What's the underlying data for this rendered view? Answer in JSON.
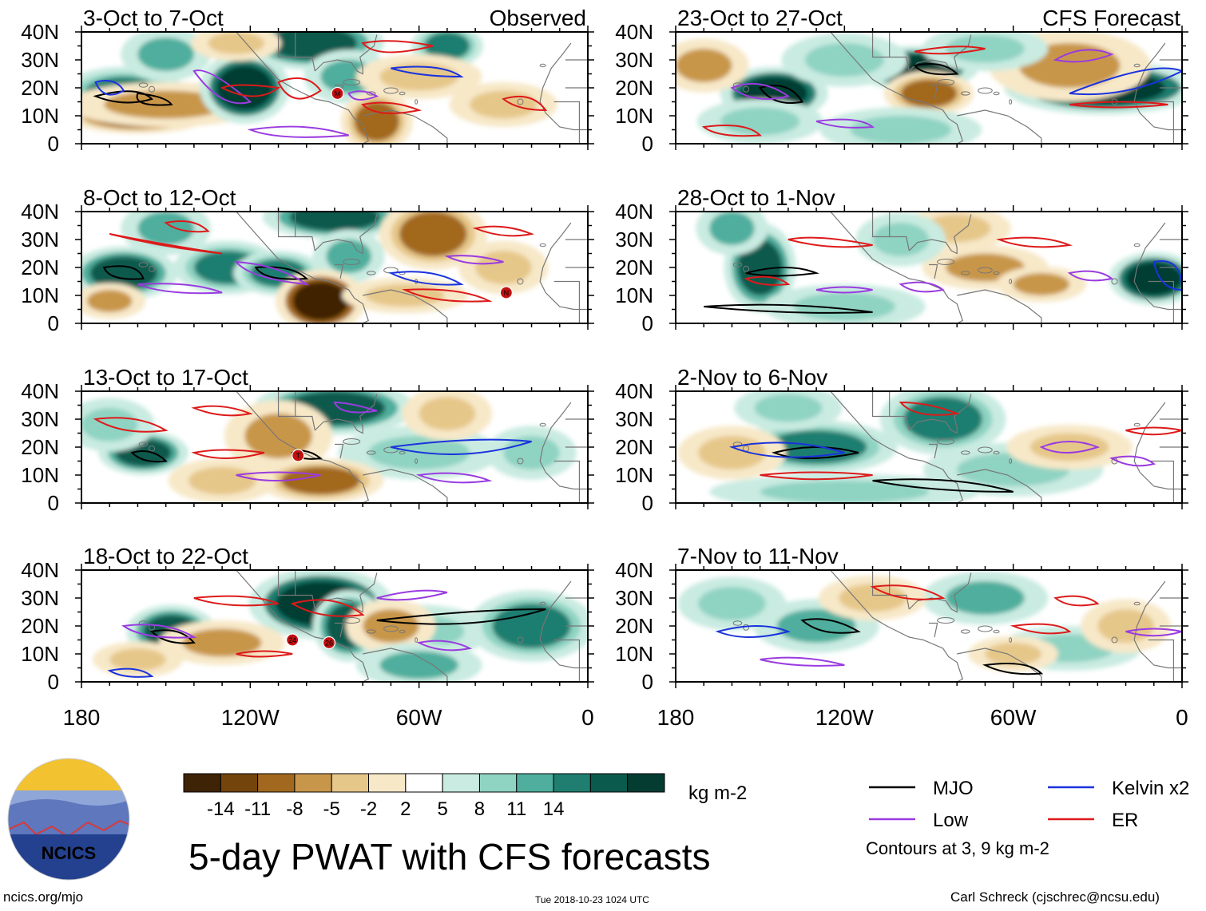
{
  "chart_data": {
    "type": "heatmap",
    "title": "5-day PWAT with CFS forecasts",
    "variable": "PWAT anomaly",
    "units": "kg m-2",
    "columns": [
      {
        "header": "Observed",
        "panels": [
          {
            "period": "3-Oct to 7-Oct"
          },
          {
            "period": "8-Oct to 12-Oct"
          },
          {
            "period": "13-Oct to 17-Oct"
          },
          {
            "period": "18-Oct to 22-Oct"
          }
        ]
      },
      {
        "header": "CFS Forecast",
        "panels": [
          {
            "period": "23-Oct to 27-Oct"
          },
          {
            "period": "28-Oct to 1-Nov"
          },
          {
            "period": "2-Nov to 6-Nov"
          },
          {
            "period": "7-Nov to 11-Nov"
          }
        ]
      }
    ],
    "y_ticks": [
      "40N",
      "30N",
      "20N",
      "10N",
      "0"
    ],
    "x_ticks": [
      "180",
      "120W",
      "60W",
      "0"
    ],
    "lat_range": [
      0,
      40
    ],
    "lon_range": [
      -180,
      0
    ],
    "colorbar": {
      "labels": [
        "-14",
        "-11",
        "-8",
        "-5",
        "-2",
        "2",
        "5",
        "8",
        "11",
        "14"
      ],
      "colors": [
        "#3f2306",
        "#74440d",
        "#a2681f",
        "#c8964a",
        "#e6c78a",
        "#f7e8c8",
        "#ffffff",
        "#c9ebe1",
        "#8fd3c2",
        "#4fae9d",
        "#1f7e70",
        "#0a5a4d",
        "#053c32"
      ]
    },
    "legend": [
      {
        "label": "MJO",
        "color": "#000000"
      },
      {
        "label": "Kelvin x2",
        "color": "#1a33dd"
      },
      {
        "label": "Low",
        "color": "#9a3be0"
      },
      {
        "label": "ER",
        "color": "#dd1a1a"
      }
    ],
    "contour_note": "Contours at 3, 9 kg m-2",
    "storm_markers": [
      {
        "panel": 0,
        "label": "M",
        "lon": -89,
        "lat": 18
      },
      {
        "panel": 1,
        "label": "N",
        "lon": -29,
        "lat": 11
      },
      {
        "panel": 2,
        "label": "T",
        "lon": -103,
        "lat": 17
      },
      {
        "panel": 3,
        "label": "24",
        "lon": -105,
        "lat": 15
      },
      {
        "panel": 3,
        "label": "26",
        "lon": -92,
        "lat": 14
      }
    ]
  },
  "footer": {
    "logo_text": "NCICS",
    "url": "ncics.org/mjo",
    "timestamp": "Tue 2018-10-23 1024 UTC",
    "author": "Carl Schreck (cjschrec@ncsu.edu)"
  }
}
